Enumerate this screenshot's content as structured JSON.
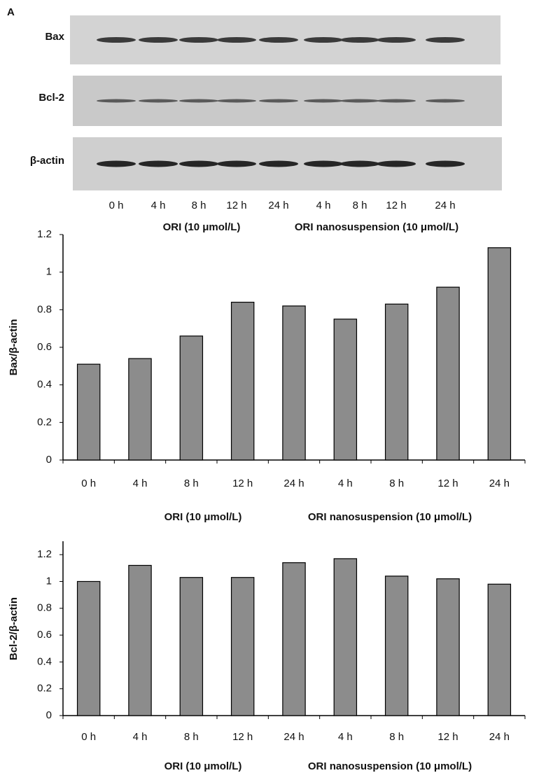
{
  "panel_label": "A",
  "blot": {
    "rows": [
      "Bax",
      "Bcl-2",
      "β-actin"
    ],
    "lanes": [
      "0 h",
      "4 h",
      "8 h",
      "12 h",
      "24 h",
      "4 h",
      "8 h",
      "12 h",
      "24 h"
    ],
    "groups": [
      "ORI (10 μmol/L)",
      "ORI nanosuspension (10 μmol/L)"
    ]
  },
  "chart_data": [
    {
      "type": "bar",
      "y_label": "Bax/β-actin",
      "categories": [
        "0 h",
        "4 h",
        "8 h",
        "12 h",
        "24 h",
        "4 h",
        "8 h",
        "12 h",
        "24 h"
      ],
      "values": [
        0.51,
        0.54,
        0.66,
        0.84,
        0.82,
        0.75,
        0.83,
        0.92,
        1.13
      ],
      "color": "#8c8c8c",
      "ylim": [
        0,
        1.2
      ],
      "yticks": [
        0,
        0.2,
        0.4,
        0.6,
        0.8,
        1,
        1.2
      ],
      "group_labels": [
        "ORI (10 μmol/L)",
        "ORI nanosuspension (10 μmol/L)"
      ]
    },
    {
      "type": "bar",
      "y_label": "Bcl-2/β-actin",
      "categories": [
        "0 h",
        "4 h",
        "8 h",
        "12 h",
        "24 h",
        "4 h",
        "8 h",
        "12 h",
        "24 h"
      ],
      "values": [
        1.0,
        1.12,
        1.03,
        1.03,
        1.14,
        1.17,
        1.04,
        1.02,
        0.98
      ],
      "color": "#8c8c8c",
      "ylim": [
        0,
        1.3
      ],
      "yticks": [
        0,
        0.2,
        0.4,
        0.6,
        0.8,
        1,
        1.2
      ],
      "group_labels": [
        "ORI (10 μmol/L)",
        "ORI nanosuspension (10 μmol/L)"
      ]
    }
  ]
}
